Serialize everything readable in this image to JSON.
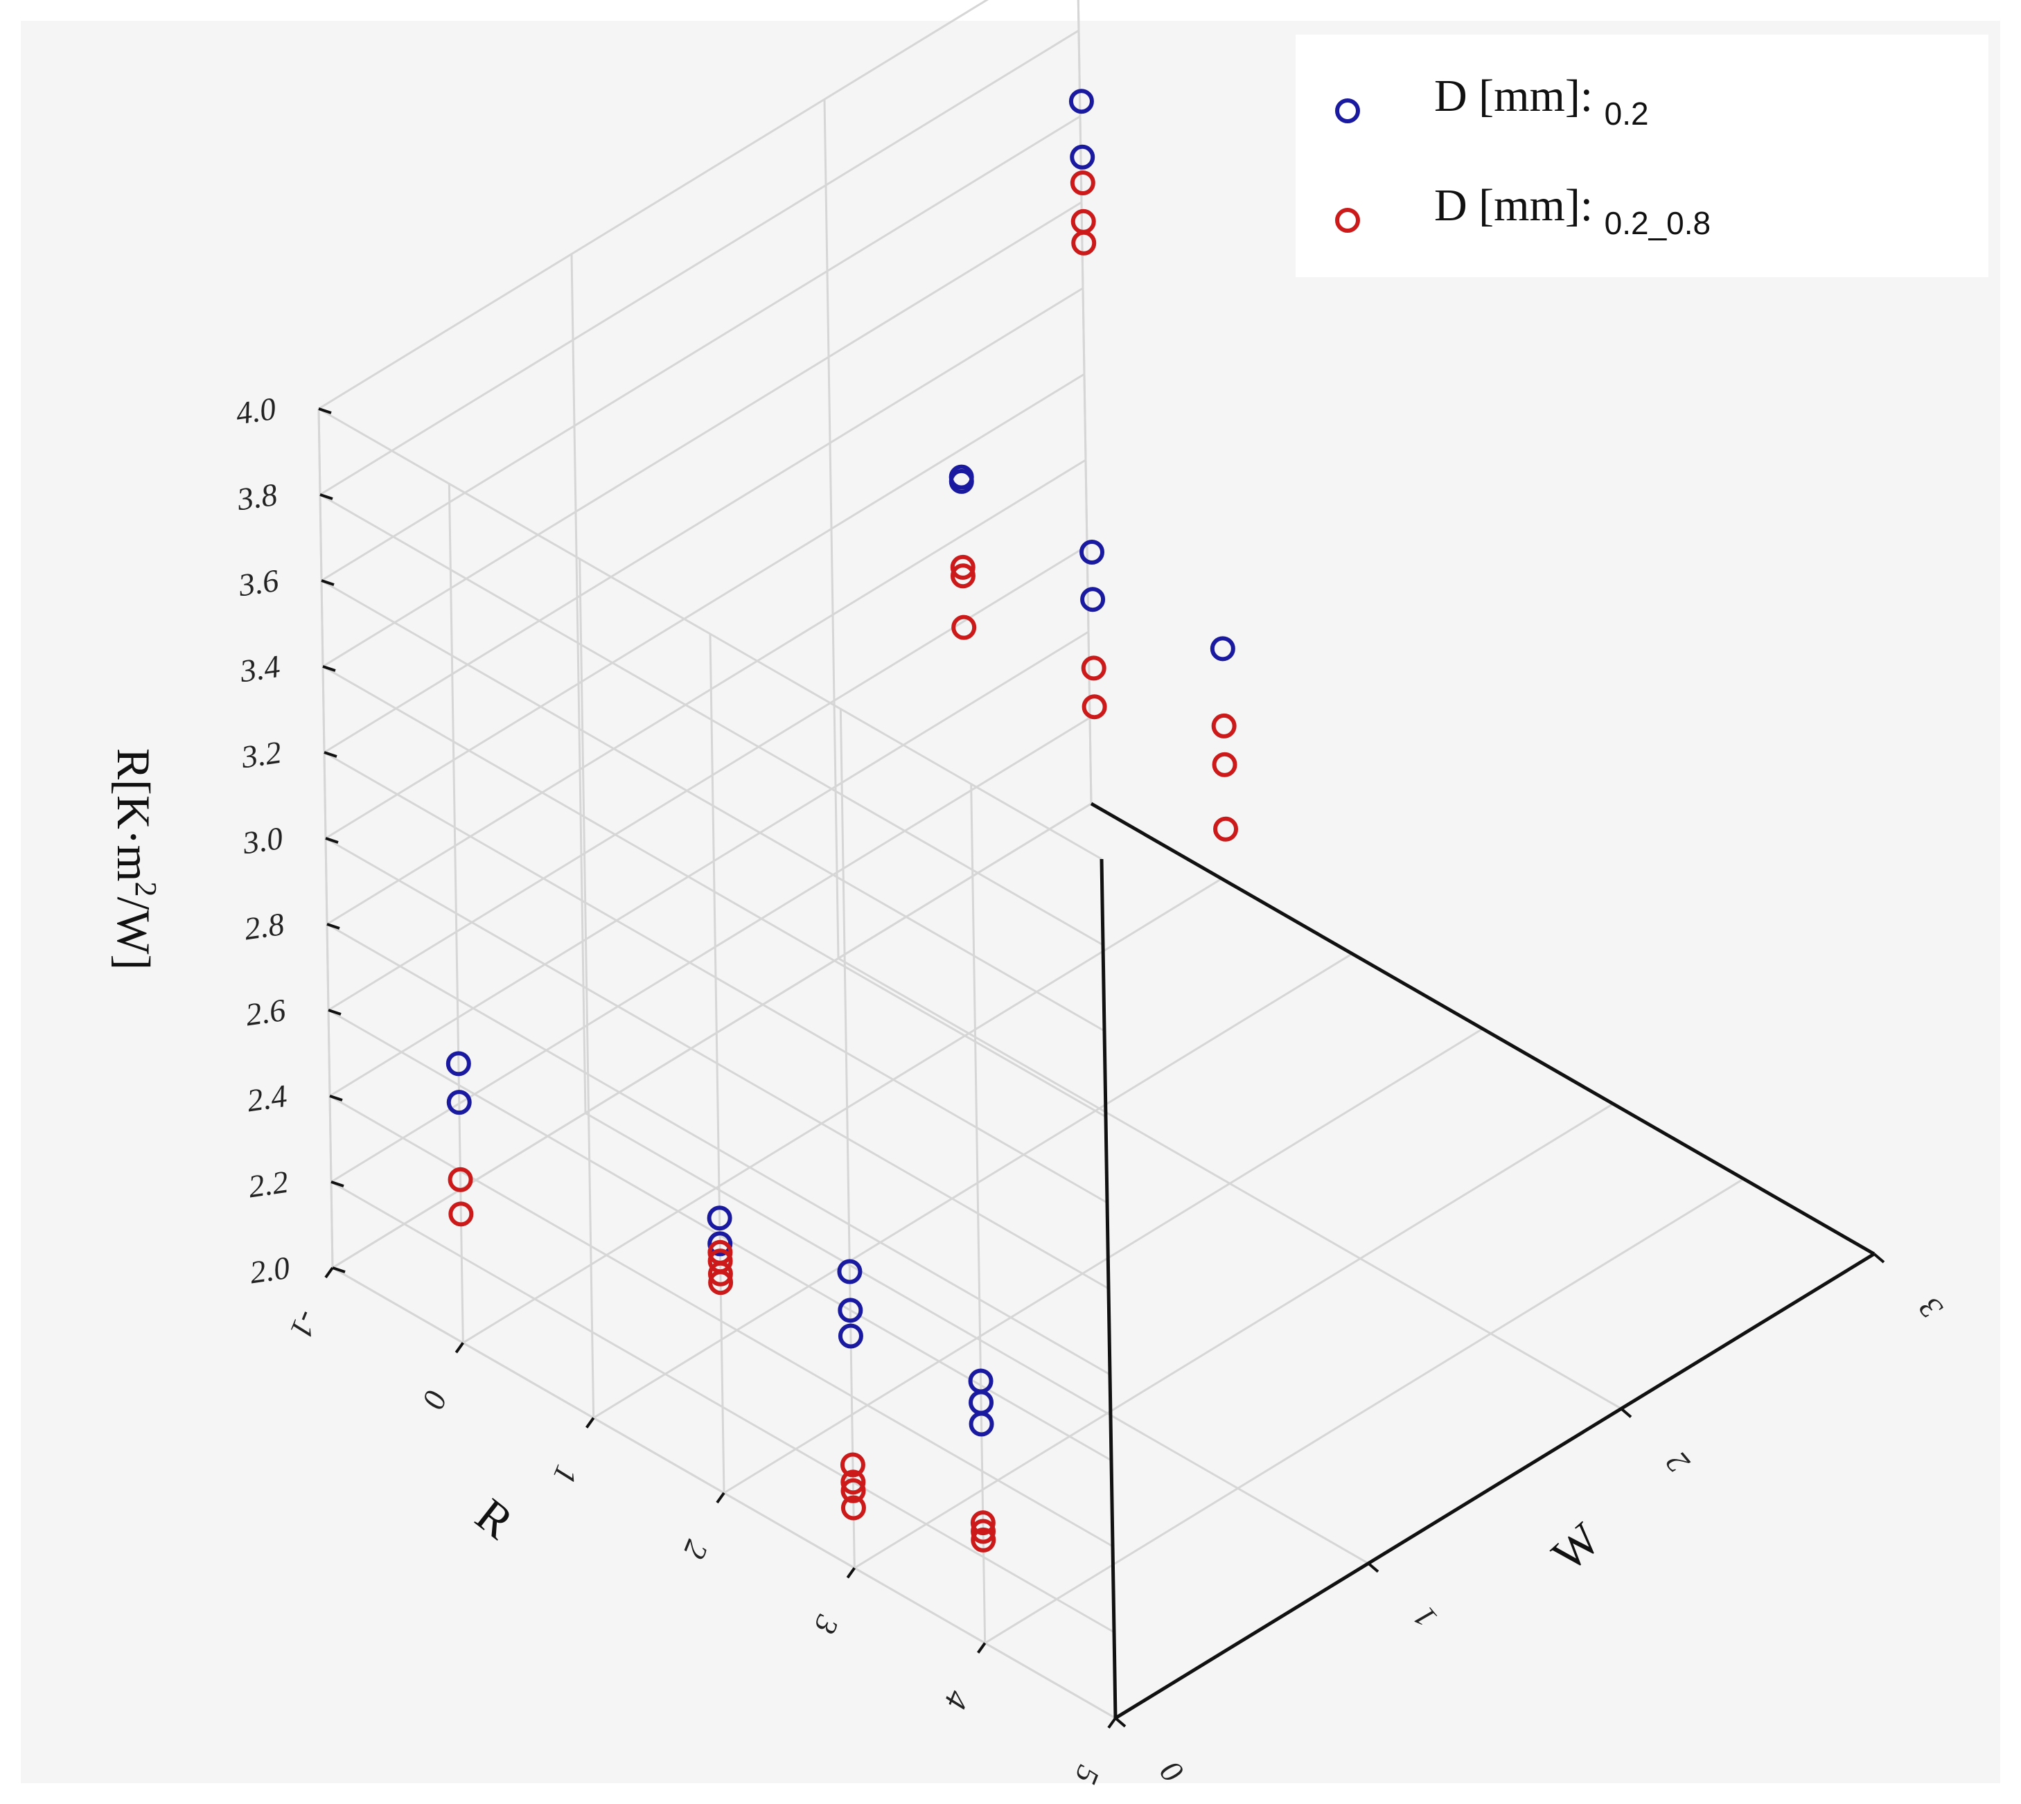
{
  "chart_data": {
    "type": "scatter3d",
    "title": "",
    "zlabel": {
      "main": "R[K·m",
      "sup": "2",
      "tail": "/W]"
    },
    "xlabel": "R",
    "ylabel": "W",
    "xlim": [
      -1,
      5
    ],
    "ylim": [
      0,
      3
    ],
    "zlim": [
      2.0,
      4.0
    ],
    "x_ticks": [
      "-1",
      "0",
      "1",
      "2",
      "3",
      "4",
      "5"
    ],
    "y_ticks": [
      "0",
      "1",
      "2",
      "3"
    ],
    "z_ticks": [
      "2.0",
      "2.2",
      "2.4",
      "2.6",
      "2.8",
      "3.0",
      "3.2",
      "3.4",
      "3.6",
      "3.8",
      "4.0"
    ],
    "legend_position": "top-right",
    "series": [
      {
        "name": "D [mm]:",
        "sub": "0.2",
        "color": "#1a1aa0",
        "points": [
          {
            "x": 4,
            "y": 0,
            "z": 2.61
          },
          {
            "x": 4,
            "y": 0,
            "z": 2.56
          },
          {
            "x": 4,
            "y": 0,
            "z": 2.51
          },
          {
            "x": 3,
            "y": 0,
            "z": 2.69
          },
          {
            "x": 3,
            "y": 0,
            "z": 2.6
          },
          {
            "x": 3,
            "y": 0,
            "z": 2.54
          },
          {
            "x": 2,
            "y": 0,
            "z": 2.64
          },
          {
            "x": 2,
            "y": 0,
            "z": 2.58
          },
          {
            "x": 0,
            "y": 0,
            "z": 2.65
          },
          {
            "x": 0,
            "y": 0,
            "z": 2.56
          },
          {
            "x": 3,
            "y": 1.5,
            "z": 3.6
          },
          {
            "x": 2,
            "y": 1.5,
            "z": 3.65
          },
          {
            "x": 2,
            "y": 1.5,
            "z": 3.54
          },
          {
            "x": 1,
            "y": 1.5,
            "z": 3.65
          },
          {
            "x": 1,
            "y": 1.5,
            "z": 3.64
          },
          {
            "x": 0,
            "y": 2.5,
            "z": 3.99
          },
          {
            "x": 0,
            "y": 2.5,
            "z": 3.86
          }
        ]
      },
      {
        "name": "D [mm]:",
        "sub": "0.2_0.8",
        "color": "#cc1a1a",
        "points": [
          {
            "x": 4,
            "y": 0,
            "z": 2.28
          },
          {
            "x": 4,
            "y": 0,
            "z": 2.26
          },
          {
            "x": 4,
            "y": 0,
            "z": 2.24
          },
          {
            "x": 3,
            "y": 0,
            "z": 2.24
          },
          {
            "x": 3,
            "y": 0,
            "z": 2.2
          },
          {
            "x": 3,
            "y": 0,
            "z": 2.18
          },
          {
            "x": 3,
            "y": 0,
            "z": 2.14
          },
          {
            "x": 2,
            "y": 0,
            "z": 2.56
          },
          {
            "x": 2,
            "y": 0,
            "z": 2.54
          },
          {
            "x": 2,
            "y": 0,
            "z": 2.51
          },
          {
            "x": 2,
            "y": 0,
            "z": 2.49
          },
          {
            "x": 0,
            "y": 0,
            "z": 2.38
          },
          {
            "x": 0,
            "y": 0,
            "z": 2.3
          },
          {
            "x": 3,
            "y": 1.5,
            "z": 3.42
          },
          {
            "x": 3,
            "y": 1.5,
            "z": 3.33
          },
          {
            "x": 3,
            "y": 1.5,
            "z": 3.18
          },
          {
            "x": 2,
            "y": 1.5,
            "z": 3.38
          },
          {
            "x": 2,
            "y": 1.5,
            "z": 3.29
          },
          {
            "x": 1,
            "y": 1.5,
            "z": 3.44
          },
          {
            "x": 1,
            "y": 1.5,
            "z": 3.42
          },
          {
            "x": 1,
            "y": 1.5,
            "z": 3.3
          },
          {
            "x": 0,
            "y": 2.5,
            "z": 3.8
          },
          {
            "x": 0,
            "y": 2.5,
            "z": 3.71
          },
          {
            "x": 0,
            "y": 2.5,
            "z": 3.66
          }
        ]
      }
    ]
  },
  "colors": {
    "background": "#f5f5f5",
    "grid": "#d6d6d6",
    "axis": "#111111"
  }
}
